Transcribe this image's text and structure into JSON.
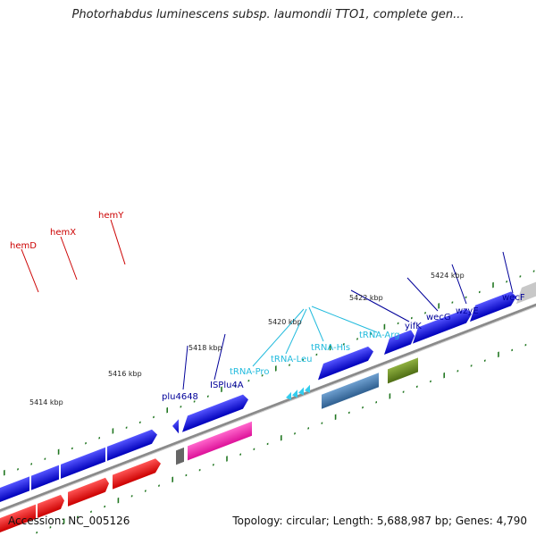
{
  "title": "Photorhabdus luminescens subsp. laumondii TTO1, complete gen...",
  "footer": {
    "accession": "Accession: NC_005126",
    "summary": "Topology: circular; Length: 5,688,987 bp; Genes: 4,790"
  },
  "scale_labels": [
    "5414 kbp",
    "5416 kbp",
    "5418 kbp",
    "5420 kbp",
    "5422 kbp",
    "5424 kbp"
  ],
  "gene_labels": {
    "hemD": "hemD",
    "hemX": "hemX",
    "hemY": "hemY",
    "plu4648": "plu4648",
    "ISPlu4A": "ISPlu4A",
    "tRNA_Pro": "tRNA-Pro",
    "tRNA_Leu": "tRNA-Leu",
    "tRNA_His": "tRNA-His",
    "tRNA_Arg": "tRNA-Arg",
    "yifK": "yifK",
    "wecG": "wecG",
    "wzyE": "wzyE",
    "wecF": "wecF"
  },
  "colors": {
    "forward_cds": "#1010e0",
    "reverse_cds": "#ee1111",
    "pink_feature": "#ee22aa",
    "steelblue_feature": "#4a7fb5",
    "olive_feature": "#6b8e23",
    "trna": "#33ccee",
    "backbone": "#888888",
    "tick": "#227722",
    "red_label": "#cc0000",
    "blue_label": "#000099",
    "cyan_label": "#22bbdd"
  }
}
